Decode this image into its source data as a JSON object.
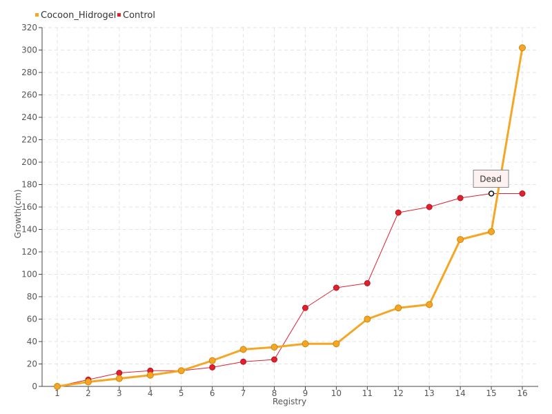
{
  "chart_data": {
    "type": "line",
    "title": "",
    "xlabel": "Registry",
    "ylabel": "Growth(cm)",
    "x": [
      1,
      2,
      3,
      4,
      5,
      6,
      7,
      8,
      9,
      10,
      11,
      12,
      13,
      14,
      15,
      16
    ],
    "ylim": [
      0,
      320
    ],
    "ytick_step": 20,
    "grid": true,
    "legend_position": "top-left",
    "series": [
      {
        "name": "Cocoon_Hidrogel",
        "color": "#f5a623",
        "values": [
          0,
          4,
          7,
          10,
          14,
          23,
          33,
          35,
          38,
          38,
          60,
          70,
          73,
          131,
          138,
          302
        ]
      },
      {
        "name": "Control",
        "color": "#e0202f",
        "values": [
          0,
          6,
          12,
          14,
          14,
          17,
          22,
          24,
          70,
          88,
          92,
          155,
          160,
          168,
          172,
          172
        ]
      }
    ],
    "annotation": {
      "text": "Dead",
      "series": "Control",
      "x": 15,
      "y": 172
    }
  }
}
